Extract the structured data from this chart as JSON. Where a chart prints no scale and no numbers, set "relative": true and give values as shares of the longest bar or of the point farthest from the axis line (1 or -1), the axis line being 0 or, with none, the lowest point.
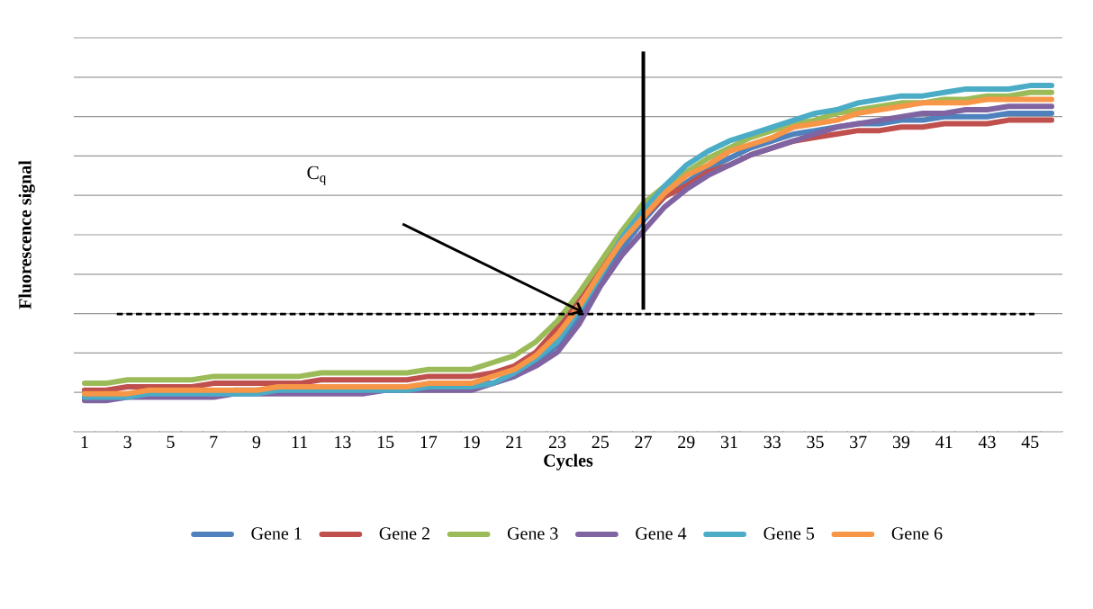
{
  "chart_data": {
    "type": "line",
    "relative": true,
    "xlabel": "Cycles",
    "ylabel": "Fluorescence signal",
    "categories": [
      "1",
      null,
      "3",
      null,
      "5",
      null,
      "7",
      null,
      "9",
      null,
      "11",
      null,
      "13",
      null,
      "15",
      null,
      "17",
      null,
      "19",
      null,
      "21",
      null,
      "23",
      null,
      "25",
      null,
      "27",
      null,
      "29",
      null,
      "31",
      null,
      "33",
      null,
      "35",
      null,
      "37",
      null,
      "39",
      null,
      "41",
      null,
      "43",
      null,
      "45",
      null
    ],
    "series": [
      {
        "name": "Gene 1",
        "color": "#4f81bd",
        "values": [
          0.1,
          0.1,
          0.11,
          0.11,
          0.11,
          0.11,
          0.11,
          0.12,
          0.12,
          0.12,
          0.12,
          0.12,
          0.12,
          0.13,
          0.13,
          0.13,
          0.13,
          0.13,
          0.14,
          0.14,
          0.16,
          0.2,
          0.25,
          0.33,
          0.44,
          0.53,
          0.61,
          0.68,
          0.72,
          0.76,
          0.79,
          0.82,
          0.84,
          0.86,
          0.87,
          0.88,
          0.89,
          0.89,
          0.9,
          0.9,
          0.91,
          0.91,
          0.91,
          0.92,
          0.92,
          0.92
        ]
      },
      {
        "name": "Gene 2",
        "color": "#c0504d",
        "values": [
          0.12,
          0.12,
          0.13,
          0.13,
          0.13,
          0.13,
          0.14,
          0.14,
          0.14,
          0.14,
          0.14,
          0.15,
          0.15,
          0.15,
          0.15,
          0.15,
          0.16,
          0.16,
          0.16,
          0.17,
          0.19,
          0.23,
          0.3,
          0.39,
          0.48,
          0.56,
          0.62,
          0.68,
          0.71,
          0.75,
          0.77,
          0.8,
          0.82,
          0.84,
          0.85,
          0.86,
          0.87,
          0.87,
          0.88,
          0.88,
          0.89,
          0.89,
          0.89,
          0.9,
          0.9,
          0.9
        ]
      },
      {
        "name": "Gene 3",
        "color": "#9bbb59",
        "values": [
          0.14,
          0.14,
          0.15,
          0.15,
          0.15,
          0.15,
          0.16,
          0.16,
          0.16,
          0.16,
          0.16,
          0.17,
          0.17,
          0.17,
          0.17,
          0.17,
          0.18,
          0.18,
          0.18,
          0.2,
          0.22,
          0.26,
          0.32,
          0.4,
          0.49,
          0.58,
          0.66,
          0.71,
          0.75,
          0.79,
          0.82,
          0.85,
          0.87,
          0.89,
          0.9,
          0.92,
          0.93,
          0.94,
          0.95,
          0.95,
          0.96,
          0.96,
          0.97,
          0.97,
          0.98,
          0.98
        ]
      },
      {
        "name": "Gene 4",
        "color": "#8064a2",
        "values": [
          0.09,
          0.09,
          0.1,
          0.1,
          0.1,
          0.1,
          0.1,
          0.11,
          0.11,
          0.11,
          0.11,
          0.11,
          0.11,
          0.11,
          0.12,
          0.12,
          0.12,
          0.12,
          0.12,
          0.14,
          0.16,
          0.19,
          0.23,
          0.31,
          0.42,
          0.51,
          0.58,
          0.65,
          0.7,
          0.74,
          0.77,
          0.8,
          0.82,
          0.84,
          0.86,
          0.88,
          0.89,
          0.9,
          0.91,
          0.92,
          0.92,
          0.93,
          0.93,
          0.94,
          0.94,
          0.94
        ]
      },
      {
        "name": "Gene 5",
        "color": "#4bacc6",
        "values": [
          0.1,
          0.1,
          0.1,
          0.11,
          0.11,
          0.11,
          0.11,
          0.11,
          0.11,
          0.12,
          0.12,
          0.12,
          0.12,
          0.12,
          0.12,
          0.12,
          0.13,
          0.13,
          0.13,
          0.14,
          0.17,
          0.21,
          0.26,
          0.35,
          0.45,
          0.56,
          0.64,
          0.71,
          0.77,
          0.81,
          0.84,
          0.86,
          0.88,
          0.9,
          0.92,
          0.93,
          0.95,
          0.96,
          0.97,
          0.97,
          0.98,
          0.99,
          0.99,
          0.99,
          1.0,
          1.0
        ]
      },
      {
        "name": "Gene 6",
        "color": "#f79646",
        "values": [
          0.11,
          0.11,
          0.11,
          0.12,
          0.12,
          0.12,
          0.12,
          0.12,
          0.12,
          0.13,
          0.13,
          0.13,
          0.13,
          0.13,
          0.13,
          0.13,
          0.14,
          0.14,
          0.14,
          0.16,
          0.18,
          0.22,
          0.28,
          0.36,
          0.46,
          0.55,
          0.62,
          0.69,
          0.74,
          0.77,
          0.81,
          0.83,
          0.85,
          0.88,
          0.89,
          0.9,
          0.92,
          0.93,
          0.94,
          0.95,
          0.95,
          0.95,
          0.96,
          0.96,
          0.96,
          0.96
        ]
      }
    ],
    "ref_lines": [
      {
        "axis": "y",
        "value": 0.34,
        "color": "#000000",
        "line_style": "dashed"
      },
      {
        "axis": "x",
        "value": "27",
        "color": "#000000",
        "line_style": "solid"
      }
    ],
    "annotations": [
      "C$_{q}$"
    ],
    "grid": "y",
    "legend": "bottom",
    "marker": "none",
    "line_style": "solid"
  }
}
